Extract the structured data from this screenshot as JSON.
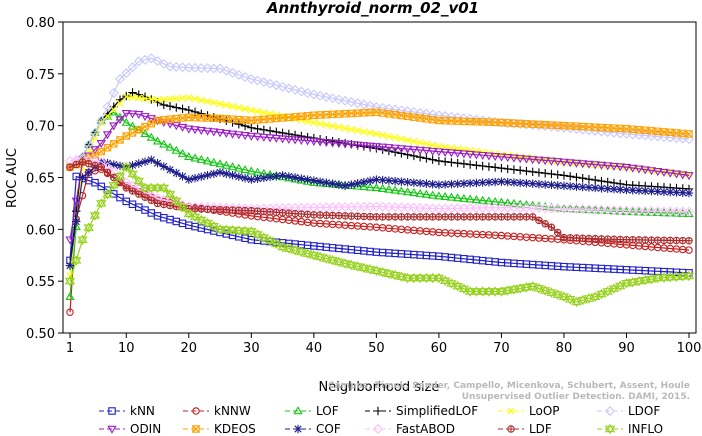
{
  "chart_data": {
    "type": "line",
    "title": "Annthyroid_norm_02_v01",
    "xlabel": "Neighborhood size",
    "ylabel": "ROC AUC",
    "xlim": [
      1,
      100
    ],
    "ylim": [
      0.5,
      0.8
    ],
    "x_ticks": [
      "1",
      "10",
      "20",
      "30",
      "40",
      "50",
      "60",
      "70",
      "80",
      "90",
      "100"
    ],
    "y_ticks": [
      "0.50",
      "0.55",
      "0.60",
      "0.65",
      "0.70",
      "0.75",
      "0.80"
    ],
    "grid": false,
    "legend_position": "bottom",
    "series": [
      {
        "name": "kNN",
        "color": "#1f1fc8",
        "marker": "square",
        "points": [
          [
            1,
            0.57
          ],
          [
            2,
            0.651
          ],
          [
            5,
            0.645
          ],
          [
            10,
            0.627
          ],
          [
            15,
            0.613
          ],
          [
            20,
            0.604
          ],
          [
            30,
            0.59
          ],
          [
            40,
            0.584
          ],
          [
            50,
            0.578
          ],
          [
            60,
            0.574
          ],
          [
            70,
            0.568
          ],
          [
            80,
            0.564
          ],
          [
            90,
            0.561
          ],
          [
            100,
            0.558
          ]
        ]
      },
      {
        "name": "kNNW",
        "color": "#c81e1e",
        "marker": "circle",
        "points": [
          [
            1,
            0.52
          ],
          [
            2,
            0.61
          ],
          [
            4,
            0.655
          ],
          [
            6,
            0.658
          ],
          [
            10,
            0.642
          ],
          [
            15,
            0.628
          ],
          [
            20,
            0.622
          ],
          [
            30,
            0.613
          ],
          [
            40,
            0.606
          ],
          [
            50,
            0.602
          ],
          [
            60,
            0.597
          ],
          [
            70,
            0.594
          ],
          [
            80,
            0.59
          ],
          [
            90,
            0.585
          ],
          [
            100,
            0.58
          ]
        ]
      },
      {
        "name": "LOF",
        "color": "#14c814",
        "marker": "triangle-up",
        "points": [
          [
            1,
            0.535
          ],
          [
            3,
            0.67
          ],
          [
            6,
            0.705
          ],
          [
            8,
            0.713
          ],
          [
            10,
            0.703
          ],
          [
            15,
            0.685
          ],
          [
            20,
            0.67
          ],
          [
            30,
            0.656
          ],
          [
            40,
            0.645
          ],
          [
            50,
            0.64
          ],
          [
            60,
            0.632
          ],
          [
            70,
            0.626
          ],
          [
            80,
            0.62
          ],
          [
            90,
            0.617
          ],
          [
            100,
            0.615
          ]
        ]
      },
      {
        "name": "SimplifiedLOF",
        "color": "#000000",
        "marker": "plus",
        "points": [
          [
            1,
            0.565
          ],
          [
            3,
            0.67
          ],
          [
            6,
            0.705
          ],
          [
            9,
            0.725
          ],
          [
            11,
            0.732
          ],
          [
            13,
            0.728
          ],
          [
            16,
            0.72
          ],
          [
            20,
            0.715
          ],
          [
            30,
            0.698
          ],
          [
            40,
            0.688
          ],
          [
            50,
            0.678
          ],
          [
            60,
            0.666
          ],
          [
            70,
            0.659
          ],
          [
            80,
            0.652
          ],
          [
            90,
            0.643
          ],
          [
            100,
            0.639
          ]
        ]
      },
      {
        "name": "LoOP",
        "color": "#ffff00",
        "marker": "x",
        "points": [
          [
            1,
            0.555
          ],
          [
            3,
            0.66
          ],
          [
            6,
            0.703
          ],
          [
            10,
            0.728
          ],
          [
            15,
            0.725
          ],
          [
            20,
            0.727
          ],
          [
            25,
            0.721
          ],
          [
            30,
            0.715
          ],
          [
            40,
            0.703
          ],
          [
            50,
            0.692
          ],
          [
            60,
            0.68
          ],
          [
            70,
            0.672
          ],
          [
            80,
            0.665
          ],
          [
            90,
            0.66
          ],
          [
            100,
            0.653
          ]
        ]
      },
      {
        "name": "LDOF",
        "color": "#c8c8ff",
        "marker": "diamond",
        "points": [
          [
            1,
            0.66
          ],
          [
            3,
            0.67
          ],
          [
            6,
            0.705
          ],
          [
            9,
            0.745
          ],
          [
            12,
            0.762
          ],
          [
            14,
            0.765
          ],
          [
            17,
            0.757
          ],
          [
            20,
            0.756
          ],
          [
            25,
            0.755
          ],
          [
            30,
            0.745
          ],
          [
            40,
            0.73
          ],
          [
            50,
            0.718
          ],
          [
            60,
            0.71
          ],
          [
            70,
            0.703
          ],
          [
            80,
            0.698
          ],
          [
            90,
            0.692
          ],
          [
            100,
            0.687
          ]
        ]
      },
      {
        "name": "ODIN",
        "color": "#9b1ec8",
        "marker": "triangle-down",
        "points": [
          [
            1,
            0.59
          ],
          [
            3,
            0.665
          ],
          [
            6,
            0.683
          ],
          [
            8,
            0.7
          ],
          [
            10,
            0.712
          ],
          [
            12,
            0.711
          ],
          [
            15,
            0.705
          ],
          [
            20,
            0.697
          ],
          [
            30,
            0.69
          ],
          [
            40,
            0.685
          ],
          [
            50,
            0.68
          ],
          [
            60,
            0.675
          ],
          [
            70,
            0.67
          ],
          [
            80,
            0.665
          ],
          [
            90,
            0.66
          ],
          [
            100,
            0.652
          ]
        ]
      },
      {
        "name": "KDEOS",
        "color": "#ffa000",
        "marker": "square-x",
        "points": [
          [
            1,
            0.66
          ],
          [
            3,
            0.665
          ],
          [
            6,
            0.675
          ],
          [
            10,
            0.69
          ],
          [
            15,
            0.705
          ],
          [
            20,
            0.708
          ],
          [
            25,
            0.707
          ],
          [
            30,
            0.705
          ],
          [
            40,
            0.71
          ],
          [
            50,
            0.713
          ],
          [
            60,
            0.705
          ],
          [
            70,
            0.703
          ],
          [
            80,
            0.7
          ],
          [
            90,
            0.697
          ],
          [
            100,
            0.692
          ]
        ]
      },
      {
        "name": "COF",
        "color": "#1e1e8c",
        "marker": "star",
        "points": [
          [
            1,
            0.565
          ],
          [
            3,
            0.65
          ],
          [
            6,
            0.665
          ],
          [
            10,
            0.66
          ],
          [
            14,
            0.667
          ],
          [
            20,
            0.648
          ],
          [
            25,
            0.655
          ],
          [
            30,
            0.648
          ],
          [
            35,
            0.652
          ],
          [
            40,
            0.647
          ],
          [
            45,
            0.642
          ],
          [
            50,
            0.648
          ],
          [
            60,
            0.643
          ],
          [
            70,
            0.646
          ],
          [
            80,
            0.642
          ],
          [
            90,
            0.638
          ],
          [
            100,
            0.635
          ]
        ]
      },
      {
        "name": "FastABOD",
        "color": "#ffbeff",
        "marker": "diamond",
        "points": [
          [
            1,
            0.666
          ],
          [
            3,
            0.668
          ],
          [
            6,
            0.665
          ],
          [
            10,
            0.645
          ],
          [
            15,
            0.63
          ],
          [
            20,
            0.622
          ],
          [
            30,
            0.62
          ],
          [
            40,
            0.621
          ],
          [
            50,
            0.622
          ],
          [
            60,
            0.62
          ],
          [
            70,
            0.621
          ],
          [
            80,
            0.62
          ],
          [
            90,
            0.618
          ],
          [
            100,
            0.617
          ]
        ]
      },
      {
        "name": "LDF",
        "color": "#aa2d2d",
        "marker": "circle-plus",
        "points": [
          [
            1,
            0.66
          ],
          [
            3,
            0.665
          ],
          [
            6,
            0.66
          ],
          [
            10,
            0.64
          ],
          [
            15,
            0.625
          ],
          [
            20,
            0.62
          ],
          [
            30,
            0.618
          ],
          [
            40,
            0.614
          ],
          [
            50,
            0.612
          ],
          [
            60,
            0.612
          ],
          [
            70,
            0.612
          ],
          [
            75,
            0.612
          ],
          [
            78,
            0.602
          ],
          [
            80,
            0.592
          ],
          [
            90,
            0.59
          ],
          [
            100,
            0.589
          ]
        ]
      },
      {
        "name": "INFLO",
        "color": "#96d21e",
        "marker": "hourglass",
        "points": [
          [
            1,
            0.55
          ],
          [
            3,
            0.59
          ],
          [
            6,
            0.625
          ],
          [
            10,
            0.66
          ],
          [
            13,
            0.64
          ],
          [
            16,
            0.64
          ],
          [
            20,
            0.615
          ],
          [
            25,
            0.6
          ],
          [
            30,
            0.598
          ],
          [
            35,
            0.583
          ],
          [
            40,
            0.575
          ],
          [
            45,
            0.567
          ],
          [
            50,
            0.56
          ],
          [
            55,
            0.553
          ],
          [
            60,
            0.553
          ],
          [
            65,
            0.54
          ],
          [
            70,
            0.54
          ],
          [
            75,
            0.545
          ],
          [
            80,
            0.535
          ],
          [
            82,
            0.53
          ],
          [
            85,
            0.535
          ],
          [
            90,
            0.548
          ],
          [
            95,
            0.553
          ],
          [
            100,
            0.555
          ]
        ]
      }
    ]
  },
  "watermark": "Campos, Zimek, Sander, Campello, Micenkova, Schubert, Assent, Houle\nUnsupervised Outlier Detection. DAMI, 2015."
}
